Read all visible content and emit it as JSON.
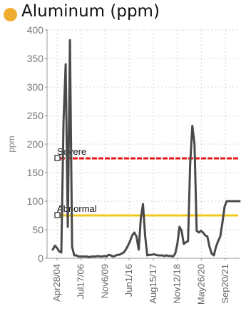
{
  "header": {
    "title": "Aluminum (ppm)",
    "dot_color": "#f0ac2e"
  },
  "chart_data": {
    "type": "line",
    "title": "Aluminum (ppm)",
    "xlabel": "",
    "ylabel": "ppm",
    "ylim": [
      0,
      400
    ],
    "yticks": [
      0,
      50,
      100,
      150,
      200,
      250,
      300,
      350,
      400
    ],
    "xticks": [
      "Apr28/04",
      "Jul17/06",
      "Nov6/09",
      "Jun1/16",
      "Aug15/17",
      "Nov12/18",
      "May26/20",
      "Sep20/21"
    ],
    "grid": true,
    "line_color": "#4a4a4a",
    "thresholds": [
      {
        "name": "Severe",
        "value": 175,
        "color": "#e81818"
      },
      {
        "name": "Abnormal",
        "value": 75,
        "color": "#f2c81e"
      }
    ],
    "series": [
      {
        "x": [
          0,
          1,
          2,
          3,
          4,
          5,
          6,
          7,
          8,
          9,
          10,
          11,
          12,
          13,
          14,
          15,
          16,
          17,
          18,
          19,
          20,
          21,
          22,
          23,
          24,
          25,
          26,
          27,
          28,
          29,
          30,
          31,
          32,
          33,
          34,
          35,
          36,
          37,
          38,
          39,
          40,
          41,
          42,
          43,
          44,
          45,
          46,
          47,
          48,
          49,
          50,
          51,
          52,
          53,
          54,
          55,
          56,
          57,
          58,
          59,
          60,
          61,
          62,
          63,
          64,
          65,
          66,
          67,
          68,
          69,
          70,
          71,
          72,
          73,
          74,
          75,
          76,
          77,
          78,
          79,
          80,
          81,
          82,
          83,
          84,
          85,
          86,
          87
        ],
        "values": [
          15,
          22,
          18,
          12,
          10,
          240,
          340,
          55,
          382,
          20,
          5,
          5,
          3,
          3,
          3,
          3,
          3,
          2,
          3,
          3,
          3,
          4,
          3,
          3,
          4,
          3,
          6,
          5,
          3,
          4,
          6,
          6,
          8,
          10,
          15,
          22,
          30,
          40,
          45,
          38,
          15,
          70,
          95,
          40,
          5,
          6,
          6,
          7,
          6,
          5,
          5,
          5,
          4,
          5,
          4,
          4,
          3,
          8,
          25,
          55,
          48,
          25,
          28,
          30,
          165,
          232,
          200,
          48,
          45,
          48,
          45,
          40,
          38,
          20,
          8,
          5,
          20,
          30,
          38,
          62,
          90,
          100,
          100,
          100,
          100,
          100,
          100,
          100
        ]
      }
    ]
  }
}
